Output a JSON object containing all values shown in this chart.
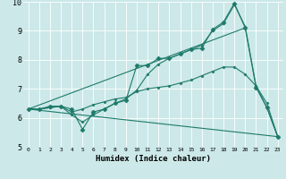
{
  "xlabel": "Humidex (Indice chaleur)",
  "xlim": [
    -0.5,
    23.5
  ],
  "ylim": [
    5,
    10
  ],
  "xticks": [
    0,
    1,
    2,
    3,
    4,
    5,
    6,
    7,
    8,
    9,
    10,
    11,
    12,
    13,
    14,
    15,
    16,
    17,
    18,
    19,
    20,
    21,
    22,
    23
  ],
  "yticks": [
    5,
    6,
    7,
    8,
    9,
    10
  ],
  "bg_color": "#cce8e8",
  "line_color": "#1e7a6a",
  "lines": [
    {
      "x": [
        0,
        1,
        2,
        3,
        4,
        5,
        6,
        7,
        8,
        9,
        10,
        11,
        12,
        13,
        14,
        15,
        16,
        17,
        18,
        19,
        20,
        21,
        22,
        23
      ],
      "y": [
        6.3,
        6.3,
        6.4,
        6.4,
        6.3,
        5.6,
        6.2,
        6.3,
        6.5,
        6.6,
        7.8,
        7.8,
        8.05,
        8.05,
        8.2,
        8.35,
        8.4,
        9.05,
        9.3,
        9.95,
        9.1,
        7.05,
        6.35,
        5.35
      ],
      "marker": "D",
      "markersize": 2.5
    },
    {
      "x": [
        0,
        1,
        2,
        3,
        4,
        5,
        6,
        7,
        8,
        9,
        10,
        11,
        12,
        13,
        14,
        15,
        16,
        17,
        18,
        19,
        20,
        21,
        22,
        23
      ],
      "y": [
        6.3,
        6.3,
        6.35,
        6.4,
        6.1,
        5.85,
        6.1,
        6.3,
        6.5,
        6.65,
        6.95,
        7.5,
        7.85,
        8.05,
        8.2,
        8.35,
        8.5,
        9.0,
        9.25,
        9.9,
        9.15,
        7.1,
        6.35,
        5.35
      ],
      "marker": "D",
      "markersize": 1.5
    },
    {
      "x": [
        0,
        1,
        2,
        3,
        4,
        5,
        6,
        7,
        8,
        9,
        10,
        11,
        12,
        13,
        14,
        15,
        16,
        17,
        18,
        19,
        20,
        21,
        22,
        23
      ],
      "y": [
        6.3,
        6.3,
        6.35,
        6.4,
        6.2,
        6.3,
        6.45,
        6.55,
        6.65,
        6.7,
        6.9,
        7.0,
        7.05,
        7.1,
        7.2,
        7.3,
        7.45,
        7.6,
        7.75,
        7.75,
        7.5,
        7.1,
        6.5,
        5.35
      ],
      "marker": "D",
      "markersize": 1.5
    },
    {
      "x": [
        0,
        20
      ],
      "y": [
        6.3,
        9.1
      ],
      "marker": null,
      "markersize": 0
    },
    {
      "x": [
        0,
        23
      ],
      "y": [
        6.3,
        5.35
      ],
      "marker": null,
      "markersize": 0
    }
  ]
}
